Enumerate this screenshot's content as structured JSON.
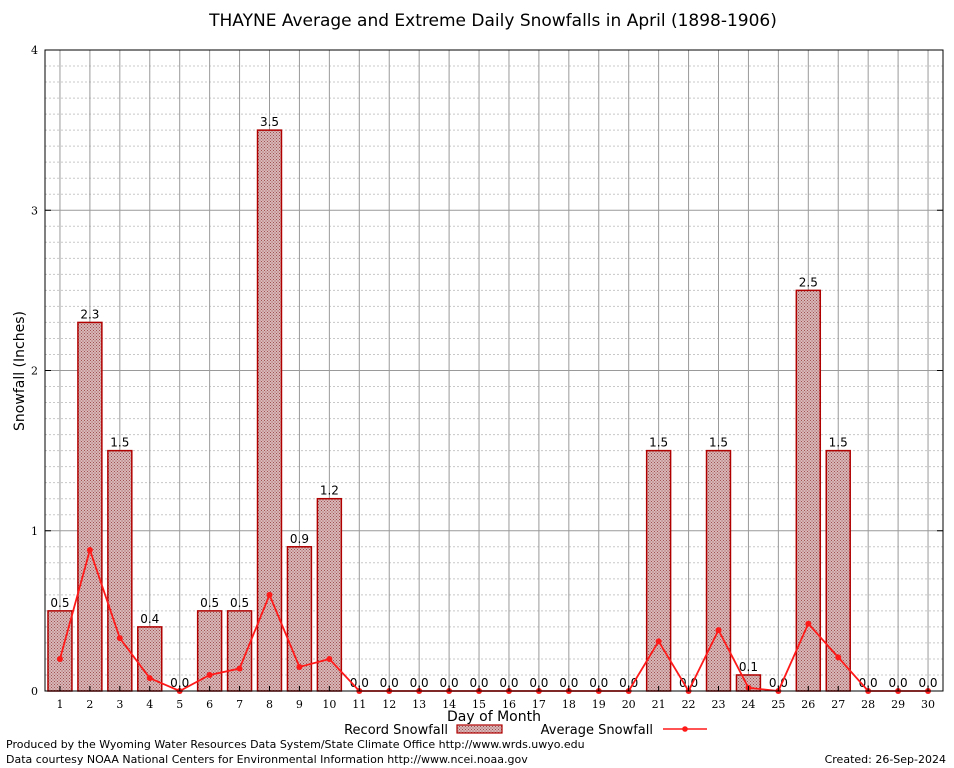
{
  "chart_data": {
    "type": "bar",
    "title": "THAYNE Average and Extreme Daily Snowfalls in April (1898-1906)",
    "xlabel": "Day of Month",
    "ylabel": "Snowfall (Inches)",
    "ylim": [
      0,
      4
    ],
    "yticks": [
      "0",
      "1",
      "2",
      "3",
      "4"
    ],
    "categories": [
      "1",
      "2",
      "3",
      "4",
      "5",
      "6",
      "7",
      "8",
      "9",
      "10",
      "11",
      "12",
      "13",
      "14",
      "15",
      "16",
      "17",
      "18",
      "19",
      "20",
      "21",
      "22",
      "23",
      "24",
      "25",
      "26",
      "27",
      "28",
      "29",
      "30"
    ],
    "series": [
      {
        "name": "Record Snowfall",
        "type": "bar",
        "values": [
          0.5,
          2.3,
          1.5,
          0.4,
          0.0,
          0.5,
          0.5,
          3.5,
          0.9,
          1.2,
          0.0,
          0.0,
          0.0,
          0.0,
          0.0,
          0.0,
          0.0,
          0.0,
          0.0,
          0.0,
          1.5,
          0.0,
          1.5,
          0.1,
          0.0,
          2.5,
          1.5,
          0.0,
          0.0,
          0.0
        ],
        "labels": [
          "0.5",
          "2.3",
          "1.5",
          "0.4",
          "0.0",
          "0.5",
          "0.5",
          "3.5",
          "0.9",
          "1.2",
          "0.0",
          "0.0",
          "0.0",
          "0.0",
          "0.0",
          "0.0",
          "0.0",
          "0.0",
          "0.0",
          "0.0",
          "1.5",
          "0.0",
          "1.5",
          "0.1",
          "0.0",
          "2.5",
          "1.5",
          "0.0",
          "0.0",
          "0.0"
        ]
      },
      {
        "name": "Average Snowfall",
        "type": "line",
        "values": [
          0.2,
          0.88,
          0.33,
          0.08,
          0.0,
          0.1,
          0.14,
          0.6,
          0.15,
          0.2,
          0.0,
          0.0,
          0.0,
          0.0,
          0.0,
          0.0,
          0.0,
          0.0,
          0.0,
          0.0,
          0.31,
          0.0,
          0.38,
          0.02,
          0.0,
          0.42,
          0.21,
          0.0,
          0.0,
          0.0
        ]
      }
    ],
    "legend": "bottom-center",
    "grid": true
  },
  "colors": {
    "bar_fill": "#c9a5a5",
    "bar_stroke": "#b00000",
    "line": "#ff1a1a",
    "grid_major": "#9a9a9a",
    "grid_minor": "#c8c8c8"
  },
  "footer": {
    "produced_by": "Produced by the Wyoming Water Resources Data System/State Climate Office http://www.wrds.uwyo.edu",
    "data_courtesy": "Data courtesy NOAA National Centers for Environmental Information http://www.ncei.noaa.gov",
    "created": "Created:  26-Sep-2024"
  }
}
